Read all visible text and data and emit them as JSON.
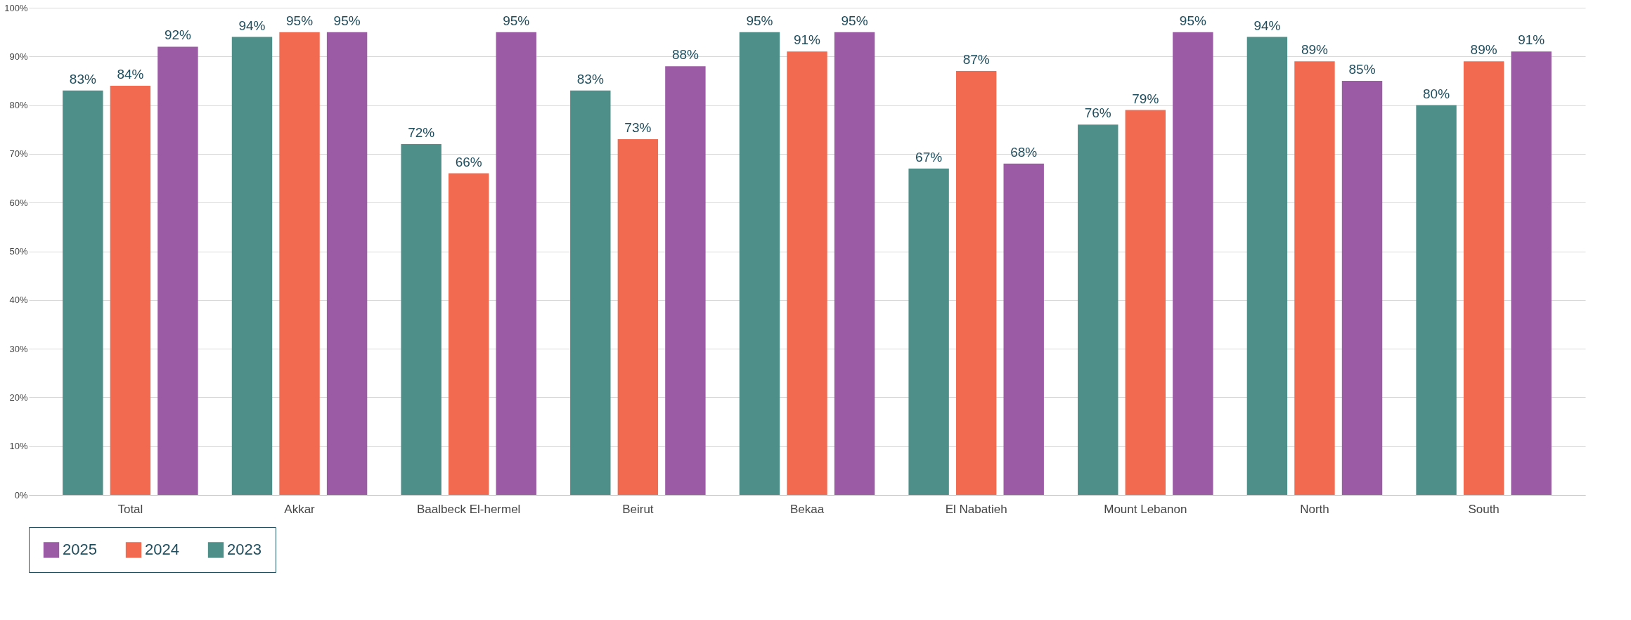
{
  "chart_data": {
    "type": "bar",
    "categories": [
      "Total",
      "Akkar",
      "Baalbeck El-hermel",
      "Beirut",
      "Bekaa",
      "El Nabatieh",
      "Mount Lebanon",
      "North",
      "South"
    ],
    "series": [
      {
        "name": "2023",
        "color": "#4f8f8a",
        "values": [
          83,
          94,
          72,
          83,
          95,
          67,
          76,
          94,
          80
        ],
        "value_labels": [
          "83%",
          "94%",
          "72%",
          "83%",
          "95%",
          "67%",
          "76%",
          "94%",
          "80%"
        ]
      },
      {
        "name": "2024",
        "color": "#f26b50",
        "values": [
          84,
          95,
          66,
          73,
          91,
          87,
          79,
          89,
          89
        ],
        "value_labels": [
          "84%",
          "95%",
          "66%",
          "73%",
          "91%",
          "87%",
          "79%",
          "89%",
          "89%"
        ]
      },
      {
        "name": "2025",
        "color": "#9b5ba5",
        "values": [
          92,
          95,
          95,
          88,
          95,
          68,
          95,
          85,
          91
        ],
        "value_labels": [
          "92%",
          "95%",
          "95%",
          "88%",
          "95%",
          "68%",
          "95%",
          "85%",
          "91%"
        ]
      }
    ],
    "ylim": [
      0,
      100
    ],
    "yticks": [
      {
        "value": 0,
        "label": "0%"
      },
      {
        "value": 10,
        "label": "10%"
      },
      {
        "value": 20,
        "label": "20%"
      },
      {
        "value": 30,
        "label": "30%"
      },
      {
        "value": 40,
        "label": "40%"
      },
      {
        "value": 50,
        "label": "50%"
      },
      {
        "value": 60,
        "label": "60%"
      },
      {
        "value": 70,
        "label": "70%"
      },
      {
        "value": 80,
        "label": "80%"
      },
      {
        "value": 90,
        "label": "90%"
      },
      {
        "value": 100,
        "label": "100%"
      }
    ],
    "grid": "y",
    "legend": "bottom left"
  }
}
